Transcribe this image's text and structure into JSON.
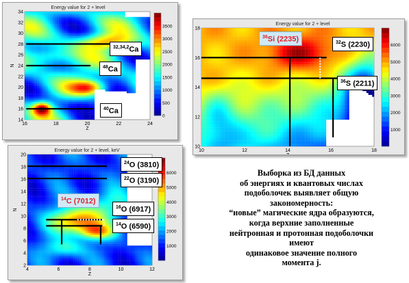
{
  "colors": {
    "jet": [
      "#00008f",
      "#0000ff",
      "#0080ff",
      "#00ffff",
      "#80ff80",
      "#ffff00",
      "#ff8000",
      "#ff0000",
      "#800000"
    ],
    "panel_bg": "#e8e8e8",
    "red_label": "#e0202a"
  },
  "panels": {
    "ca": {
      "title": "Energy value for 2 + level",
      "labels": {
        "n1": "32,34,2",
        "s1": "Ca",
        "n2": "48",
        "s2": "Ca",
        "n3": "40",
        "s3": "Ca"
      }
    },
    "si": {
      "title": "Energy value for 2 + level",
      "labels": {
        "n1": "36",
        "s1": "Si (2235)",
        "n2": "32",
        "s2": "S (2230)",
        "n3": "36",
        "s3": "S (2211)"
      }
    },
    "o": {
      "title": "Energy value for 2 + level, keV",
      "labels": {
        "n1": "24",
        "s1": "O (3810)",
        "n2": "22",
        "s2": "O (3190)",
        "n3": "14",
        "s3": "C (7012)",
        "n4": "16",
        "s4": "O (6917)",
        "n5": "14",
        "s5": "O (6590)"
      }
    }
  },
  "caption": [
    "Выборка из БД данных",
    "об энергиях и квантовых числах",
    "подоболочек выявляет общую",
    "закономерность:",
    "“новые” магические ядра образуются,",
    "когда верхние заполненные",
    "нейтронная и протонная подоболочки",
    "имеют",
    "одинаковое значение полного",
    "момента j."
  ],
  "chart_data": [
    {
      "type": "heatmap",
      "title": "Energy value for 2 + level",
      "xlabel": "Z",
      "ylabel": "N",
      "xlim": [
        16,
        24
      ],
      "ylim": [
        14,
        34
      ],
      "xticks": [
        16,
        18,
        20,
        22,
        24
      ],
      "yticks": [
        14,
        16,
        18,
        20,
        22,
        24,
        26,
        28,
        30,
        32,
        34
      ],
      "colorbar": {
        "range": [
          0,
          4000
        ],
        "ticks": [
          0,
          500,
          1000,
          1500,
          2000,
          2500,
          3000,
          3500
        ]
      }
    },
    {
      "type": "heatmap",
      "title": "Energy value for 2 + level",
      "xlabel": "Z",
      "ylabel": "N",
      "xlim": [
        10,
        18
      ],
      "ylim": [
        10,
        18
      ],
      "xticks": [
        10,
        12,
        14,
        16,
        18
      ],
      "yticks": [
        10,
        12,
        14,
        16,
        18
      ],
      "colorbar": {
        "range": [
          0,
          7000
        ],
        "ticks": [
          1000,
          2000,
          3000,
          4000,
          5000,
          6000
        ]
      }
    },
    {
      "type": "heatmap",
      "title": "Energy value for 2 + level, keV",
      "xlabel": "Z",
      "ylabel": "N",
      "xlim": [
        4,
        12
      ],
      "ylim": [
        2,
        20
      ],
      "xticks": [
        4,
        6,
        8,
        10,
        12
      ],
      "yticks": [
        2,
        4,
        6,
        8,
        10,
        12,
        14,
        16,
        18,
        20
      ],
      "colorbar": {
        "range": [
          0,
          7000
        ],
        "ticks": [
          1000,
          2000,
          3000,
          4000,
          5000,
          6000
        ]
      }
    }
  ]
}
